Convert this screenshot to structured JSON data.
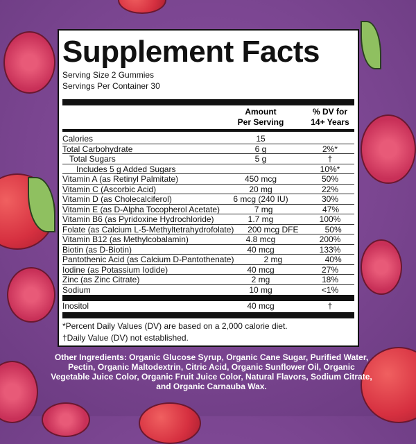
{
  "title": "Supplement Facts",
  "serving_size": "Serving Size 2 Gummies",
  "servings_per_container": "Servings Per Container 30",
  "header": {
    "amount_line1": "Amount",
    "amount_line2": "Per Serving",
    "dv_line1": "% DV for",
    "dv_line2": "14+ Years"
  },
  "rows": [
    {
      "name": "Calories",
      "amount": "15",
      "dv": ""
    },
    {
      "name": "Total Carbohydrate",
      "amount": "6 g",
      "dv": "2%*"
    },
    {
      "name": "Total Sugars",
      "amount": "5 g",
      "dv": "†"
    },
    {
      "name": "Includes 5 g Added Sugars",
      "amount": "",
      "dv": "10%*"
    },
    {
      "name": "Vitamin A (as Retinyl Palmitate)",
      "amount": "450 mcg",
      "dv": "50%"
    },
    {
      "name": "Vitamin C (Ascorbic Acid)",
      "amount": "20 mg",
      "dv": "22%"
    },
    {
      "name": "Vitamin D (as Cholecalciferol)",
      "amount": "6 mcg (240 IU)",
      "dv": "30%"
    },
    {
      "name": "Vitamin E (as D-Alpha Tocopherol Acetate)",
      "amount": "7 mg",
      "dv": "47%"
    },
    {
      "name": "Vitamin B6 (as Pyridoxine Hydrochloride)",
      "amount": "1.7 mg",
      "dv": "100%"
    },
    {
      "name": "Folate (as Calcium L-5-Methyltetrahydrofolate)",
      "amount": "200 mcg DFE",
      "dv": "50%"
    },
    {
      "name": "Vitamin B12 (as Methylcobalamin)",
      "amount": "4.8 mcg",
      "dv": "200%"
    },
    {
      "name": "Biotin (as D-Biotin)",
      "amount": "40 mcg",
      "dv": "133%"
    },
    {
      "name": "Pantothenic Acid (as Calcium D-Pantothenate)",
      "amount": "2 mg",
      "dv": "40%"
    },
    {
      "name": "Iodine (as Potassium Iodide)",
      "amount": "40 mcg",
      "dv": "27%"
    },
    {
      "name": "Zinc (as Zinc Citrate)",
      "amount": "2 mg",
      "dv": "18%"
    },
    {
      "name": "Sodium",
      "amount": "10 mg",
      "dv": "<1%"
    }
  ],
  "other_rows": [
    {
      "name": "Inositol",
      "amount": "40 mcg",
      "dv": "†"
    }
  ],
  "footnotes": [
    "*Percent Daily Values (DV) are based on a 2,000 calorie diet.",
    "†Daily Value (DV) not established."
  ],
  "other_ingredients": "Other Ingredients: Organic Glucose Syrup, Organic Cane Sugar, Purified Water, Pectin, Organic Maltodextrin, Citric Acid, Organic Sunflower Oil, Organic Vegetable Juice Color, Organic Fruit Juice Color, Natural Flavors, Sodium Citrate, and Organic Carnauba Wax.",
  "colors": {
    "background": "#7a4590",
    "cherry": "#d63040",
    "raspberry": "#c83058"
  }
}
